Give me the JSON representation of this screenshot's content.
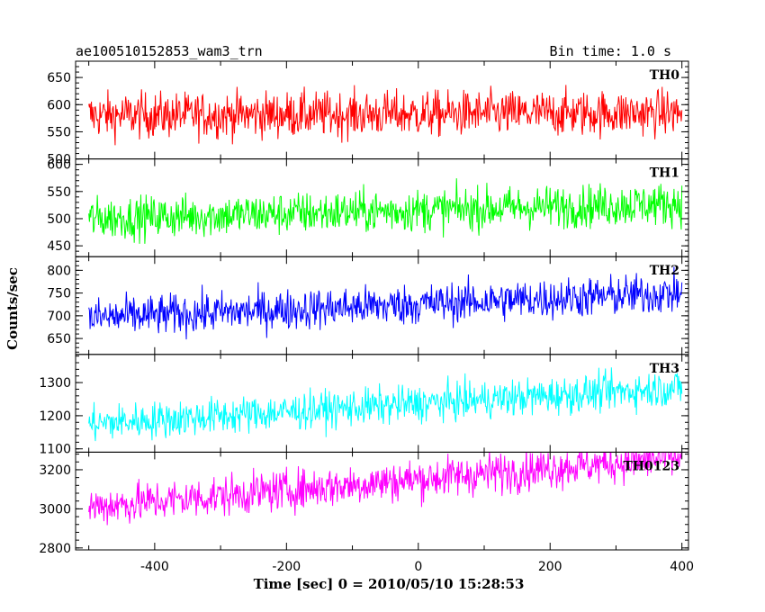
{
  "header": {
    "title": "ae100510152853_wam3_trn",
    "bin_time": "Bin time: 1.0 s"
  },
  "chart_data": {
    "type": "line",
    "xlabel": "Time [sec] 0 = 2010/05/10 15:28:53",
    "ylabel": "Counts/sec",
    "xlim": [
      -520,
      410
    ],
    "x_ticks": [
      -400,
      -200,
      0,
      200,
      400
    ],
    "x_range": [
      -500,
      400
    ],
    "bin_time": 1.0,
    "panels": [
      {
        "name": "TH0",
        "color": "#ff0000",
        "ylim": [
          500,
          680
        ],
        "y_ticks": [
          500,
          550,
          600,
          650
        ],
        "trend": [
          [
            -500,
            580
          ],
          [
            400,
            585
          ]
        ],
        "noise_amplitude": 30
      },
      {
        "name": "TH1",
        "color": "#00ff00",
        "ylim": [
          430,
          610
        ],
        "y_ticks": [
          450,
          500,
          550,
          600
        ],
        "trend": [
          [
            -500,
            500
          ],
          [
            400,
            528
          ]
        ],
        "noise_amplitude": 28
      },
      {
        "name": "TH2",
        "color": "#0000ff",
        "ylim": [
          615,
          830
        ],
        "y_ticks": [
          650,
          700,
          750,
          800
        ],
        "trend": [
          [
            -500,
            695
          ],
          [
            400,
            750
          ]
        ],
        "noise_amplitude": 32
      },
      {
        "name": "TH3",
        "color": "#00ffff",
        "ylim": [
          1090,
          1385
        ],
        "y_ticks": [
          1100,
          1200,
          1300
        ],
        "trend": [
          [
            -500,
            1175
          ],
          [
            400,
            1285
          ]
        ],
        "noise_amplitude": 40
      },
      {
        "name": "TH0123",
        "color": "#ff00ff",
        "ylim": [
          2790,
          3290
        ],
        "y_ticks": [
          2800,
          3000,
          3200
        ],
        "trend": [
          [
            -500,
            3010
          ],
          [
            400,
            3265
          ]
        ],
        "noise_amplitude": 75
      }
    ]
  }
}
